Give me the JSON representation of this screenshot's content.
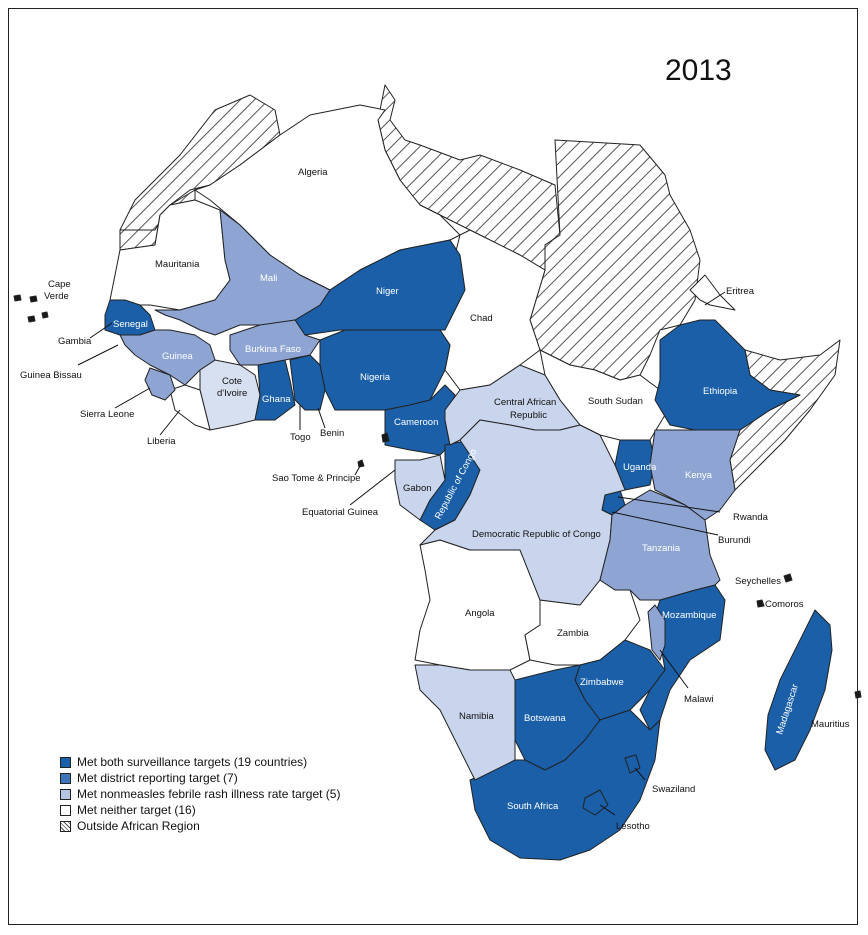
{
  "year": "2013",
  "colors": {
    "both": "#1a5fa8",
    "district": "#3d74b8",
    "rash": "#b5c5e3",
    "medium": "#8ea5d4",
    "neither": "#ffffff",
    "outside_stroke": "#555555"
  },
  "legend": [
    {
      "label": "Met both surveillance targets (19 countries)",
      "category": "both"
    },
    {
      "label": "Met district reporting target (7)",
      "category": "district"
    },
    {
      "label": "Met nonmeasles febrile rash illness rate target (5)",
      "category": "rash"
    },
    {
      "label": "Met neither target (16)",
      "category": "neither"
    },
    {
      "label": "Outside African Region",
      "category": "outside"
    }
  ],
  "countries": {
    "algeria": "Algeria",
    "mauritania": "Mauritania",
    "mali": "Mali",
    "niger": "Niger",
    "chad": "Chad",
    "eritrea": "Eritrea",
    "cape_verde_1": "Cape",
    "cape_verde_2": "Verde",
    "senegal": "Senegal",
    "gambia": "Gambia",
    "guinea_bissau": "Guinea Bissau",
    "guinea": "Guinea",
    "burkina_faso": "Burkina Faso",
    "sierra_leone": "Sierra Leone",
    "liberia": "Liberia",
    "cote_divoire_1": "Cote",
    "cote_divoire_2": "d'Ivoire",
    "ghana": "Ghana",
    "togo": "Togo",
    "benin": "Benin",
    "nigeria": "Nigeria",
    "cameroon": "Cameroon",
    "car_1": "Central African",
    "car_2": "Republic",
    "south_sudan": "South Sudan",
    "ethiopia": "Ethiopia",
    "sao_tome": "Sao Tome & Principe",
    "equatorial_guinea": "Equatorial Guinea",
    "gabon": "Gabon",
    "congo": "Republic of Congo",
    "drc": "Democratic Republic of Congo",
    "uganda": "Uganda",
    "kenya": "Kenya",
    "rwanda": "Rwanda",
    "burundi": "Burundi",
    "tanzania": "Tanzania",
    "seychelles": "Seychelles",
    "comoros": "Comoros",
    "angola": "Angola",
    "zambia": "Zambia",
    "mozambique": "Mozambique",
    "malawi": "Malawi",
    "madagascar": "Madagascar",
    "mauritius": "Mauritius",
    "zimbabwe": "Zimbabwe",
    "namibia": "Namibia",
    "botswana": "Botswana",
    "swaziland": "Swaziland",
    "south_africa": "South Africa",
    "lesotho": "Lesotho"
  }
}
